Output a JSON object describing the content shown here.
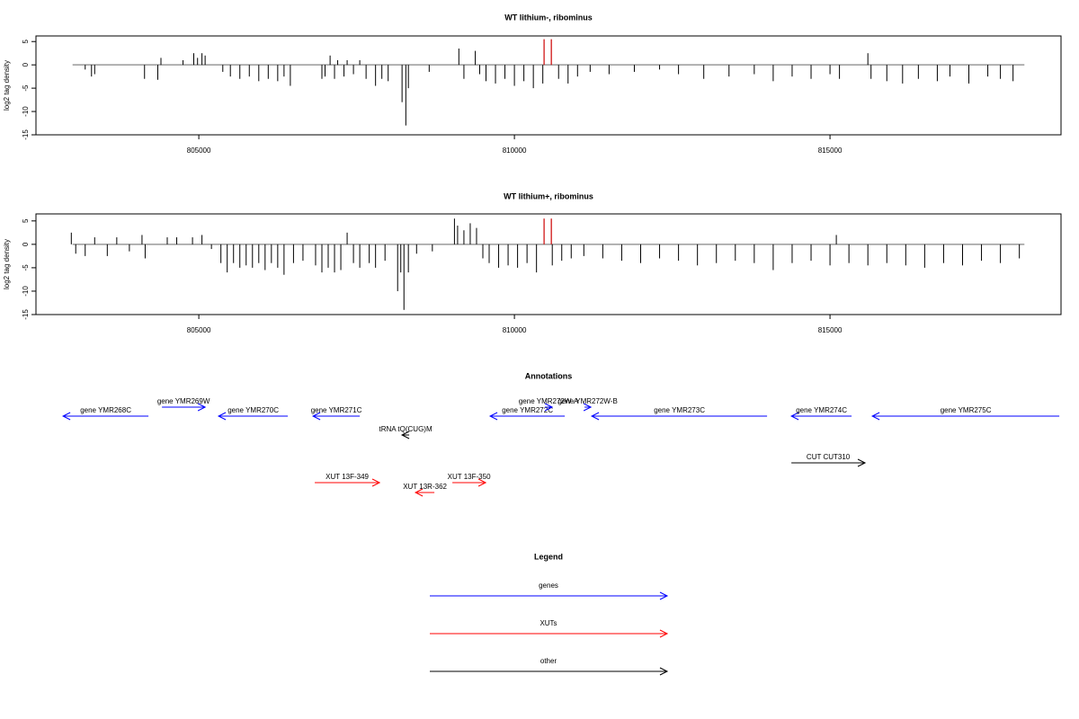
{
  "chart_data": [
    {
      "type": "needle",
      "title": "WT lithium-, ribominus",
      "ylabel": "log2 tag density",
      "xlim": [
        802420,
        818660
      ],
      "ylim": [
        -15,
        6.2
      ],
      "xticks": [
        805000,
        810000,
        815000
      ],
      "yticks": [
        5,
        0,
        -5,
        -10,
        -15
      ],
      "baseline_x": [
        803000,
        818080
      ],
      "color": "#000000",
      "baseline_color": "#999999",
      "x": [
        803200,
        803300,
        803350,
        804140,
        804350,
        804400,
        804750,
        804920,
        804980,
        805050,
        805100,
        805380,
        805500,
        805650,
        805800,
        805950,
        806100,
        806250,
        806350,
        806450,
        806950,
        807000,
        807080,
        807150,
        807200,
        807300,
        807350,
        807450,
        807550,
        807650,
        807800,
        807900,
        808000,
        808220,
        808280,
        808320,
        808650,
        809120,
        809200,
        809380,
        809450,
        809550,
        809700,
        809850,
        810000,
        810150,
        810300,
        810450,
        810700,
        810850,
        811000,
        811200,
        811500,
        811900,
        812300,
        812600,
        813000,
        813400,
        813800,
        814100,
        814400,
        814700,
        815000,
        815150,
        815600,
        815650,
        815900,
        816150,
        816400,
        816700,
        816900,
        817200,
        817500,
        817700,
        817900
      ],
      "values": [
        -1,
        -2.5,
        -2,
        -3,
        -3.2,
        1.5,
        1,
        2.5,
        1.5,
        2.5,
        2,
        -1.5,
        -2.5,
        -3,
        -2.5,
        -3.5,
        -3,
        -3.5,
        -2.5,
        -4.5,
        -3,
        -2.5,
        2,
        -3,
        1,
        -2.5,
        1,
        -2,
        1,
        -3,
        -4.5,
        -3,
        -3.5,
        -8,
        -13,
        -5,
        -1.5,
        3.5,
        -3,
        3,
        -2,
        -3.5,
        -4,
        -3,
        -4.5,
        -3.5,
        -5,
        -4,
        -3,
        -4,
        -2.5,
        -1.5,
        -2,
        -1.5,
        -1,
        -2,
        -3,
        -2.5,
        -2,
        -3.5,
        -2.5,
        -3,
        -2,
        -3,
        2.5,
        -3,
        -3.5,
        -4,
        -3,
        -3.5,
        -2.5,
        -4,
        -2.5,
        -3,
        -3.5
      ],
      "highlights": {
        "x": [
          810470,
          810585
        ],
        "values": [
          5.5,
          5.5
        ],
        "color": "#cc0000"
      }
    },
    {
      "type": "needle",
      "title": "WT lithium+, ribominus",
      "ylabel": "log2 tag density",
      "xlim": [
        802420,
        818660
      ],
      "ylim": [
        -15,
        6.5
      ],
      "xticks": [
        805000,
        810000,
        815000
      ],
      "yticks": [
        5,
        0,
        -5,
        -10,
        -15
      ],
      "baseline_x": [
        803000,
        818080
      ],
      "color": "#000000",
      "baseline_color": "#999999",
      "x": [
        802980,
        803050,
        803200,
        803350,
        803550,
        803700,
        803900,
        804100,
        804150,
        804500,
        804650,
        804900,
        805050,
        805200,
        805350,
        805450,
        805550,
        805650,
        805750,
        805850,
        805950,
        806050,
        806150,
        806250,
        806350,
        806500,
        806650,
        806850,
        806950,
        807050,
        807150,
        807250,
        807350,
        807450,
        807550,
        807700,
        807800,
        807950,
        808150,
        808200,
        808250,
        808320,
        808450,
        808700,
        809050,
        809100,
        809200,
        809300,
        809400,
        809500,
        809600,
        809750,
        809900,
        810050,
        810200,
        810350,
        810600,
        810750,
        810900,
        811100,
        811400,
        811700,
        812000,
        812300,
        812600,
        812900,
        813200,
        813500,
        813800,
        814100,
        814400,
        814700,
        815000,
        815100,
        815300,
        815600,
        815900,
        816200,
        816500,
        816800,
        817100,
        817400,
        817700,
        818000
      ],
      "values": [
        2.5,
        -2,
        -2.5,
        1.5,
        -2.5,
        1.5,
        -1.5,
        2,
        -3,
        1.5,
        1.5,
        1.5,
        2,
        -1,
        -4,
        -6,
        -4,
        -5,
        -4.5,
        -5,
        -4,
        -5.5,
        -4,
        -5,
        -6.5,
        -4,
        -3.5,
        -4.5,
        -6,
        -5,
        -6,
        -5.5,
        2.5,
        -4,
        -5,
        -4,
        -5,
        -3.5,
        -10,
        -6,
        -14,
        -6,
        -2,
        -1.5,
        5.5,
        4,
        3,
        4.5,
        3.5,
        -3,
        -4,
        -5,
        -4.5,
        -5,
        -4,
        -6,
        -4.5,
        -3.5,
        -3,
        -2.5,
        -3,
        -3.5,
        -4,
        -3,
        -3.5,
        -4.5,
        -4,
        -3.5,
        -4,
        -5.5,
        -4,
        -3.5,
        -4.5,
        2,
        -4,
        -4.5,
        -4,
        -4.5,
        -5,
        -4,
        -4.5,
        -3.5,
        -4,
        -3
      ],
      "highlights": {
        "x": [
          810470,
          810585
        ],
        "values": [
          5.5,
          5.5
        ],
        "color": "#cc0000"
      }
    }
  ],
  "annotations": {
    "title": "Annotations",
    "features": [
      {
        "label": "gene YMR268C",
        "start": 802849,
        "end": 804202,
        "strand": "-",
        "color": "#0000ff"
      },
      {
        "label": "gene YMR269W",
        "start": 804416,
        "end": 805100,
        "strand": "+",
        "color": "#0000ff"
      },
      {
        "label": "gene YMR270C",
        "start": 805313,
        "end": 806410,
        "strand": "-",
        "color": "#0000ff"
      },
      {
        "label": "gene YMR271C",
        "start": 806809,
        "end": 807550,
        "strand": "-",
        "color": "#0000ff"
      },
      {
        "label": "tRNA tQ(CUG)M",
        "start": 808219,
        "end": 808333,
        "strand": "-",
        "color": "#000000"
      },
      {
        "label": "gene YMR272C",
        "start": 809615,
        "end": 810798,
        "strand": "-",
        "color": "#0000ff"
      },
      {
        "label": "gene YMR272W-A",
        "start": 810484,
        "end": 810598,
        "strand": "+",
        "color": "#0000ff"
      },
      {
        "label": "gene YMR272W-B",
        "start": 811111,
        "end": 811211,
        "strand": "+",
        "color": "#0000ff"
      },
      {
        "label": "gene YMR273C",
        "start": 811225,
        "end": 814003,
        "strand": "-",
        "color": "#0000ff"
      },
      {
        "label": "gene YMR274C",
        "start": 814388,
        "end": 815342,
        "strand": "-",
        "color": "#0000ff"
      },
      {
        "label": "gene YMR275C",
        "start": 815670,
        "end": 818633,
        "strand": "-",
        "color": "#0000ff"
      },
      {
        "label": "CUT CUT310",
        "start": 814388,
        "end": 815555,
        "strand": "+",
        "color": "#000000"
      },
      {
        "label": "XUT 13F-349",
        "start": 806837,
        "end": 807863,
        "strand": "+",
        "color": "#ff0000"
      },
      {
        "label": "XUT 13R-362",
        "start": 808433,
        "end": 808732,
        "strand": "-",
        "color": "#ff0000"
      },
      {
        "label": "XUT 13F-350",
        "start": 809017,
        "end": 809544,
        "strand": "+",
        "color": "#ff0000"
      }
    ]
  },
  "legend": {
    "title": "Legend",
    "items": [
      {
        "label": "genes",
        "color": "#0000ff"
      },
      {
        "label": "XUTs",
        "color": "#ff0000"
      },
      {
        "label": "other",
        "color": "#000000"
      }
    ]
  }
}
